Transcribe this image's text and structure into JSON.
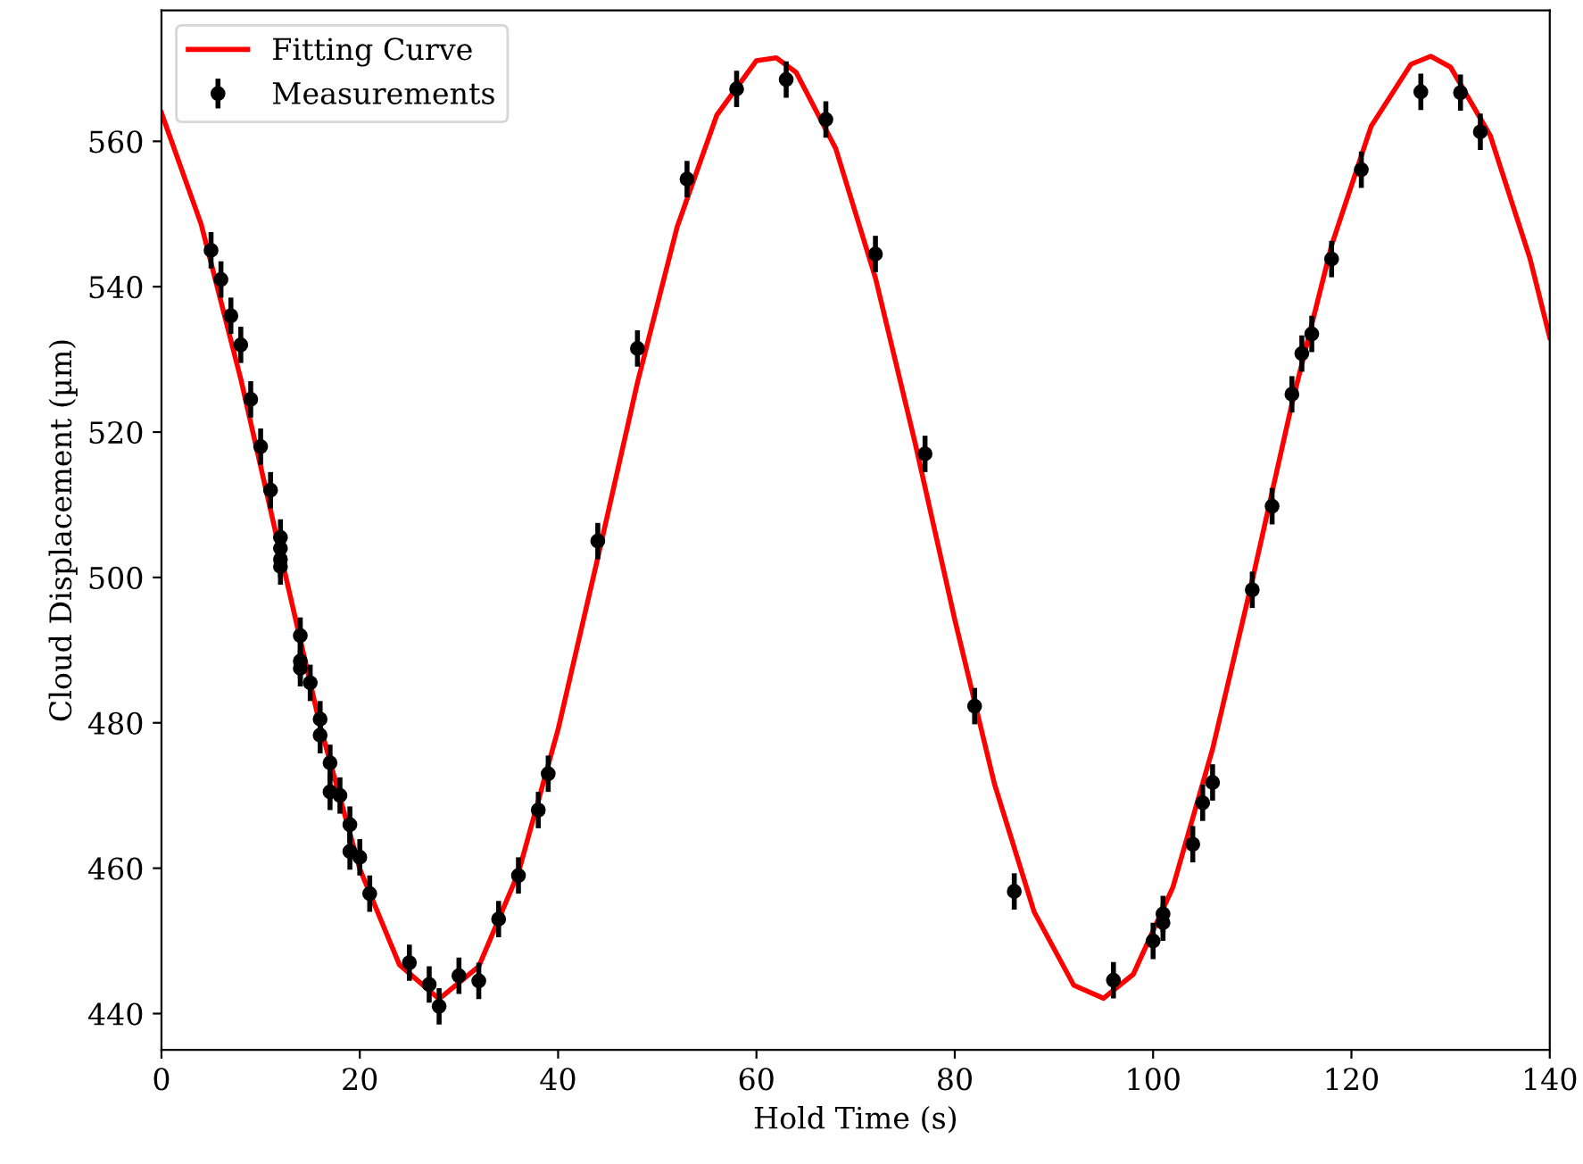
{
  "chart_data": {
    "type": "scatter",
    "xlabel": "Hold Time (s)",
    "ylabel": "Cloud Displacement (µm)",
    "xlim": [
      0,
      140
    ],
    "xticks": [
      0,
      20,
      40,
      60,
      80,
      100,
      120,
      140
    ],
    "ylim": [
      435,
      578
    ],
    "yticks": [
      440,
      460,
      480,
      500,
      520,
      540,
      560
    ],
    "grid": false,
    "legend": "top left",
    "series": [
      {
        "name": "Fitting Curve",
        "type": "line",
        "color": "#ff0000",
        "marker": "none",
        "line_style": "solid",
        "x": [
          0,
          4,
          8,
          12,
          16,
          20,
          24,
          28,
          32,
          36,
          40,
          44,
          48,
          52,
          56,
          60,
          62,
          64,
          68,
          72,
          76,
          80,
          84,
          88,
          92,
          95,
          98,
          102,
          106,
          110,
          114,
          118,
          122,
          126,
          128,
          130,
          134,
          138,
          140
        ],
        "values": [
          563.9,
          548.6,
          527.3,
          503.3,
          479.6,
          459.9,
          446.7,
          442.0,
          446.5,
          459.4,
          479.1,
          502.7,
          526.8,
          548.2,
          563.6,
          571.1,
          571.5,
          569.5,
          559.0,
          541.2,
          518.5,
          494.2,
          471.6,
          454.0,
          443.9,
          442.1,
          445.4,
          457.4,
          476.4,
          499.6,
          523.9,
          545.7,
          562.1,
          570.6,
          571.7,
          570.2,
          560.8,
          543.9,
          533.0
        ]
      },
      {
        "name": "Measurements",
        "color": "#000000",
        "marker": "circle",
        "x": [
          5,
          6,
          7,
          8,
          9,
          10,
          11,
          12,
          12,
          12,
          12,
          14,
          14,
          14,
          15,
          16,
          16,
          17,
          17,
          18,
          19,
          19,
          20,
          21,
          25,
          27,
          28,
          30,
          32,
          34,
          36,
          38,
          39,
          44,
          48,
          53,
          58,
          63,
          67,
          72,
          77,
          82,
          86,
          96,
          100,
          101,
          101,
          104,
          105,
          106,
          110,
          112,
          114,
          115,
          116,
          118,
          121,
          127,
          131,
          133
        ],
        "values": [
          545,
          541,
          536,
          532,
          524.5,
          518,
          512,
          505.5,
          504,
          502.5,
          501.5,
          492,
          488.5,
          487.5,
          485.5,
          480.5,
          478.3,
          474.5,
          470.5,
          470,
          466,
          462.3,
          461.5,
          456.5,
          447,
          444,
          441,
          445.2,
          444.5,
          453,
          459,
          468,
          473,
          505,
          531.5,
          554.8,
          567.2,
          568.5,
          563,
          544.5,
          517,
          482.3,
          456.8,
          444.6,
          450,
          452.5,
          453.7,
          463.3,
          469,
          471.8,
          498.3,
          509.8,
          525.2,
          530.8,
          533.5,
          543.8,
          556.1,
          566.8,
          566.7,
          561.3
        ],
        "errors": [
          2.5,
          2.5,
          2.5,
          2.5,
          2.5,
          2.5,
          2.5,
          2.5,
          2.5,
          2.5,
          2.5,
          2.5,
          2.5,
          2.5,
          2.5,
          2.5,
          2.5,
          2.5,
          2.5,
          2.5,
          2.5,
          2.5,
          2.5,
          2.5,
          2.5,
          2.5,
          2.5,
          2.5,
          2.5,
          2.5,
          2.5,
          2.5,
          2.5,
          2.5,
          2.5,
          2.5,
          2.5,
          2.5,
          2.5,
          2.5,
          2.5,
          2.5,
          2.5,
          2.5,
          2.5,
          2.5,
          2.5,
          2.5,
          2.5,
          2.5,
          2.5,
          2.5,
          2.5,
          2.5,
          2.5,
          2.5,
          2.5,
          2.5,
          2.5,
          2.5
        ]
      }
    ]
  }
}
